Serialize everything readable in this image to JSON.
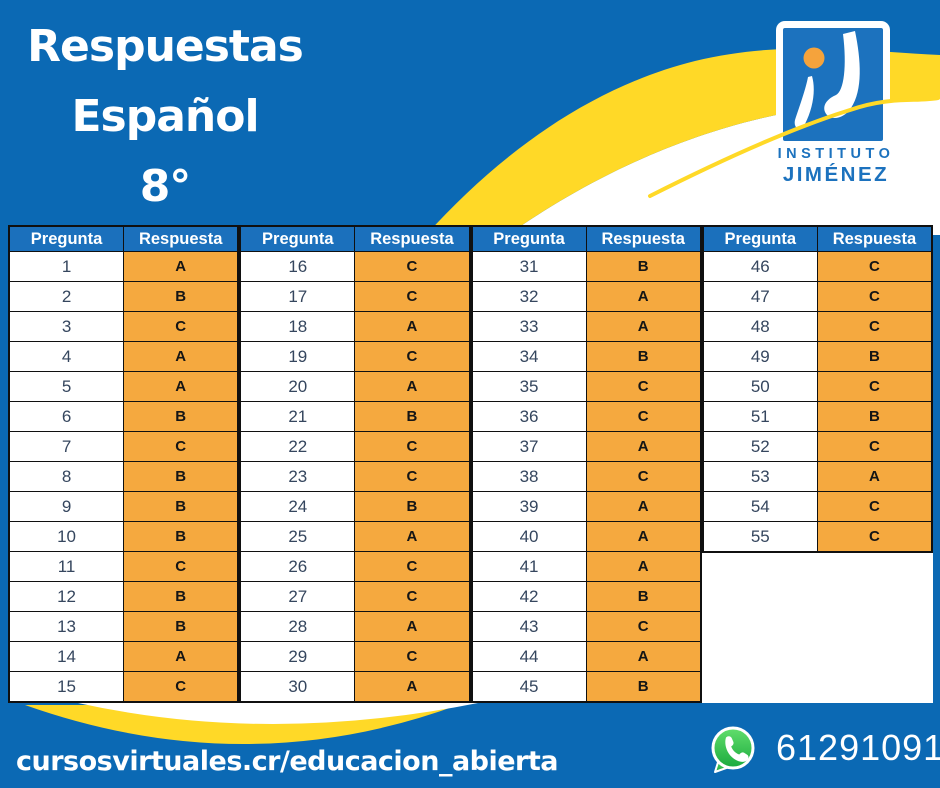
{
  "title": {
    "lines": [
      "Respuestas",
      "Español",
      "8°"
    ]
  },
  "logo": {
    "mark": "instituto-jimenez-monogram",
    "name_line1": "INSTITUTO",
    "name_line2": "JIMÉNEZ"
  },
  "answer_table": {
    "pregunta_header": "Pregunta",
    "respuesta_header": "Respuesta",
    "sections": [
      {
        "questions": [
          1,
          2,
          3,
          4,
          5,
          6,
          7,
          8,
          9,
          10,
          11,
          12,
          13,
          14,
          15
        ],
        "answers": [
          "A",
          "B",
          "C",
          "A",
          "A",
          "B",
          "C",
          "B",
          "B",
          "B",
          "C",
          "B",
          "B",
          "A",
          "C"
        ]
      },
      {
        "questions": [
          16,
          17,
          18,
          19,
          20,
          21,
          22,
          23,
          24,
          25,
          26,
          27,
          28,
          29,
          30
        ],
        "answers": [
          "C",
          "C",
          "A",
          "C",
          "A",
          "B",
          "C",
          "C",
          "B",
          "A",
          "C",
          "C",
          "A",
          "C",
          "A"
        ]
      },
      {
        "questions": [
          31,
          32,
          33,
          34,
          35,
          36,
          37,
          38,
          39,
          40,
          41,
          42,
          43,
          44,
          45
        ],
        "answers": [
          "B",
          "A",
          "A",
          "B",
          "C",
          "C",
          "A",
          "C",
          "A",
          "A",
          "A",
          "B",
          "C",
          "A",
          "B"
        ]
      },
      {
        "questions": [
          46,
          47,
          48,
          49,
          50,
          51,
          52,
          53,
          54,
          55
        ],
        "answers": [
          "C",
          "C",
          "C",
          "B",
          "C",
          "B",
          "C",
          "A",
          "C",
          "C"
        ]
      }
    ]
  },
  "footer": {
    "url": "cursosvirtuales.cr/educacion_abierta",
    "phone": "61291091",
    "whatsapp_icon": "whatsapp-icon"
  },
  "colors": {
    "bg_blue": "#0B69B4",
    "header_blue": "#1B70BC",
    "answer_orange": "#F5A93F",
    "wave_yellow": "#FFD927",
    "logo_blue": "#1C72BE",
    "question_text": "#35465E",
    "whatsapp_green": "#29B23F"
  }
}
